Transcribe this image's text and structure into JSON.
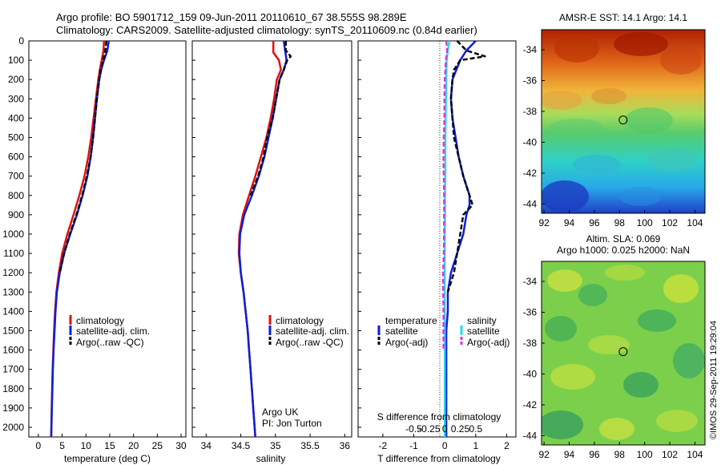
{
  "title_line1": "Argo profile: BO 5901712_159 09-Jun-2011 20110610_67 38.555S 98.289E",
  "title_line2": "Climatology: CARS2009. Satellite-adjusted climatology: synTS_20110609.nc (0.84d earlier)",
  "credit": "©IMOS 29-Sep-2011 19:29:04",
  "colors": {
    "red": "#e01010",
    "blue": "#0a1fd6",
    "black": "#000000",
    "cyan": "#22dde8",
    "magenta": "#e030e0"
  },
  "chart_data": [
    {
      "type": "line",
      "name": "temperature",
      "xlabel": "temperature (deg C)",
      "xlim": [
        -2,
        31
      ],
      "xticks": [
        0,
        5,
        10,
        15,
        20,
        25,
        30
      ],
      "ylim": [
        2050,
        0
      ],
      "yticks": [
        0,
        100,
        200,
        300,
        400,
        500,
        600,
        700,
        800,
        900,
        1000,
        1100,
        1200,
        1300,
        1400,
        1500,
        1600,
        1700,
        1800,
        1900,
        2000
      ],
      "legend": [
        "climatology",
        "satellite-adj. clim.",
        "Argo(..raw -QC)"
      ],
      "series": [
        {
          "name": "climatology",
          "color": "red",
          "dash": false,
          "depth": [
            0,
            50,
            100,
            150,
            200,
            300,
            400,
            500,
            600,
            700,
            800,
            900,
            1000,
            1100,
            1200,
            1300,
            1400,
            1500,
            1600,
            1700,
            1800,
            1900,
            2050
          ],
          "values": [
            13.8,
            13.7,
            13.3,
            12.9,
            12.6,
            12.1,
            11.6,
            11.1,
            10.5,
            9.7,
            8.6,
            7.4,
            6.1,
            5.0,
            4.3,
            3.8,
            3.5,
            3.3,
            3.15,
            3.0,
            2.9,
            2.8,
            2.7
          ]
        },
        {
          "name": "satellite-adj. clim.",
          "color": "blue",
          "dash": false,
          "depth": [
            0,
            50,
            100,
            150,
            200,
            300,
            400,
            500,
            600,
            700,
            800,
            900,
            1000,
            1100,
            1200,
            1300,
            1400,
            1500,
            1600,
            1700,
            1800,
            1900,
            2050
          ],
          "values": [
            14.8,
            14.5,
            13.8,
            13.2,
            12.8,
            12.3,
            11.9,
            11.5,
            11.0,
            10.3,
            9.3,
            8.1,
            6.7,
            5.4,
            4.5,
            3.9,
            3.6,
            3.4,
            3.2,
            3.05,
            2.95,
            2.85,
            2.7
          ]
        },
        {
          "name": "Argo(..raw -QC)",
          "color": "black",
          "dash": true,
          "depth": [
            0,
            50,
            100,
            150,
            200,
            300,
            400,
            500,
            600,
            700,
            800,
            900,
            1000,
            1100,
            1200
          ],
          "values": [
            14.3,
            14.1,
            13.6,
            13.1,
            12.8,
            12.3,
            11.9,
            11.5,
            11.0,
            10.2,
            9.2,
            8.0,
            6.6,
            5.4,
            4.5
          ]
        }
      ]
    },
    {
      "type": "line",
      "name": "salinity",
      "xlabel": "salinity",
      "xlim": [
        33.8,
        36.1
      ],
      "xticks": [
        34,
        34.5,
        35,
        35.5,
        36
      ],
      "ylim": [
        2050,
        0
      ],
      "legend": [
        "climatology",
        "satellite-adj. clim.",
        "Argo(..raw -QC)"
      ],
      "annotation": [
        "Argo UK",
        "PI: Jon Turton"
      ],
      "series": [
        {
          "name": "climatology",
          "color": "red",
          "dash": false,
          "depth": [
            0,
            60,
            100,
            150,
            200,
            300,
            400,
            500,
            600,
            700,
            800,
            900,
            1000,
            1100,
            1200,
            1300,
            1400,
            1500,
            1600,
            1700,
            1800,
            1900,
            2050
          ],
          "values": [
            34.97,
            34.97,
            35.05,
            35.08,
            35.02,
            34.98,
            34.93,
            34.87,
            34.79,
            34.71,
            34.62,
            34.53,
            34.48,
            34.47,
            34.5,
            34.54,
            34.57,
            34.6,
            34.62,
            34.64,
            34.66,
            34.68,
            34.71
          ]
        },
        {
          "name": "satellite-adj. clim.",
          "color": "blue",
          "dash": false,
          "depth": [
            0,
            50,
            100,
            150,
            200,
            300,
            400,
            500,
            600,
            700,
            800,
            900,
            1000,
            1100,
            1200,
            1300,
            1400,
            1500,
            1600,
            1700,
            1800,
            1900,
            2050
          ],
          "values": [
            35.12,
            35.14,
            35.16,
            35.12,
            35.06,
            35.01,
            34.96,
            34.9,
            34.84,
            34.76,
            34.66,
            34.55,
            34.49,
            34.48,
            34.5,
            34.54,
            34.57,
            34.6,
            34.62,
            34.64,
            34.66,
            34.68,
            34.71
          ]
        },
        {
          "name": "Argo(..raw -QC)",
          "color": "black",
          "dash": true,
          "depth": [
            0,
            50,
            80,
            100,
            150,
            200,
            300,
            400,
            500,
            600,
            700,
            800
          ],
          "values": [
            35.15,
            35.15,
            35.22,
            35.17,
            35.12,
            35.06,
            35.01,
            34.96,
            34.88,
            34.83,
            34.75,
            34.64
          ]
        }
      ]
    },
    {
      "type": "line",
      "name": "difference",
      "xlabel_top": "S difference from climatology",
      "xlabel": "T difference from climatology",
      "xlim": [
        -2.8,
        2.3
      ],
      "xticks": [
        -2,
        -1,
        0,
        1,
        2
      ],
      "xtick_labels": [
        "-2",
        "-1",
        "0",
        "1",
        "2"
      ],
      "s_xticks": [
        -0.5,
        -0.25,
        0,
        0.25,
        0.5
      ],
      "s_xtick_labels": [
        "-0.5",
        "-0.25",
        "0",
        "0.25",
        "0.5"
      ],
      "ylim": [
        2050,
        0
      ],
      "legend_headers": [
        "temperature",
        "salinity"
      ],
      "legend": [
        "satellite",
        "Argo(-adj)",
        "satellite",
        "Argo(-adj)"
      ],
      "series": [
        {
          "name": "temperature satellite",
          "color": "blue",
          "dash": false,
          "depth": [
            0,
            50,
            100,
            200,
            300,
            400,
            500,
            600,
            700,
            800,
            850,
            900,
            1000,
            1100,
            1200,
            1300,
            1400,
            1500,
            1600,
            1700,
            1800,
            1900,
            2050
          ],
          "values": [
            1.0,
            0.7,
            0.5,
            0.25,
            0.2,
            0.25,
            0.35,
            0.45,
            0.6,
            0.8,
            0.8,
            0.7,
            0.6,
            0.4,
            0.2,
            0.1,
            0.1,
            0.05,
            0.05,
            0.05,
            0.05,
            0.05,
            0.05
          ]
        },
        {
          "name": "temperature Argo(-adj)",
          "color": "black",
          "dash": true,
          "depth": [
            0,
            50,
            80,
            100,
            150,
            200,
            300,
            400,
            500,
            600,
            700,
            800,
            850,
            900,
            1000,
            1100,
            1200,
            1300
          ],
          "values": [
            0.4,
            0.7,
            1.3,
            0.5,
            0.3,
            0.25,
            0.2,
            0.25,
            0.3,
            0.45,
            0.6,
            0.8,
            0.9,
            0.6,
            0.5,
            0.4,
            0.3,
            0.1
          ]
        },
        {
          "name": "salinity satellite",
          "color": "cyan",
          "dash": false,
          "depth": [
            0,
            50,
            100,
            200,
            300,
            400,
            500,
            600,
            700,
            800,
            900,
            1000,
            1100,
            1200,
            1300,
            1400,
            1500,
            1600,
            1700,
            1800,
            1900,
            2050
          ],
          "values": [
            0.15,
            0.1,
            0.06,
            0.05,
            0.04,
            0.03,
            0.02,
            0.02,
            0.02,
            0.01,
            0.01,
            0.0,
            0.0,
            0.0,
            0.0,
            0.0,
            0.0,
            0.0,
            0.0,
            0.0,
            0.0,
            0.0
          ]
        },
        {
          "name": "salinity Argo(-adj)",
          "color": "magenta",
          "dash": true,
          "depth": [
            0,
            50,
            100,
            200,
            300,
            400,
            500,
            600,
            700,
            800,
            900,
            1000,
            1100,
            1200,
            1300,
            1400,
            1500,
            1600
          ],
          "values": [
            0.05,
            0.08,
            0.04,
            0.0,
            -0.01,
            -0.01,
            -0.03,
            -0.04,
            -0.03,
            -0.02,
            -0.02,
            -0.02,
            -0.03,
            -0.05,
            -0.05,
            -0.04,
            -0.04,
            -0.04
          ]
        }
      ]
    },
    {
      "type": "heatmap",
      "name": "sst-map",
      "title": "AMSR-E SST: 14.1 Argo: 14.1",
      "xticks": [
        92,
        94,
        96,
        98,
        100,
        102,
        104
      ],
      "yticks": [
        -34,
        -36,
        -38,
        -40,
        -42,
        -44
      ],
      "xlim": [
        91.8,
        104.8
      ],
      "ylim": [
        -44.6,
        -32.7
      ],
      "argo_position": [
        98.289,
        -38.555
      ]
    },
    {
      "type": "heatmap",
      "name": "sla-map",
      "title_line1": "Altim. SLA: 0.069",
      "title_line2": "Argo h1000: 0.025 h2000: NaN",
      "xticks": [
        92,
        94,
        96,
        98,
        100,
        102,
        104
      ],
      "yticks": [
        -34,
        -36,
        -38,
        -40,
        -42,
        -44
      ],
      "xlim": [
        91.8,
        104.8
      ],
      "ylim": [
        -44.6,
        -32.7
      ],
      "argo_position": [
        98.289,
        -38.555
      ]
    }
  ]
}
